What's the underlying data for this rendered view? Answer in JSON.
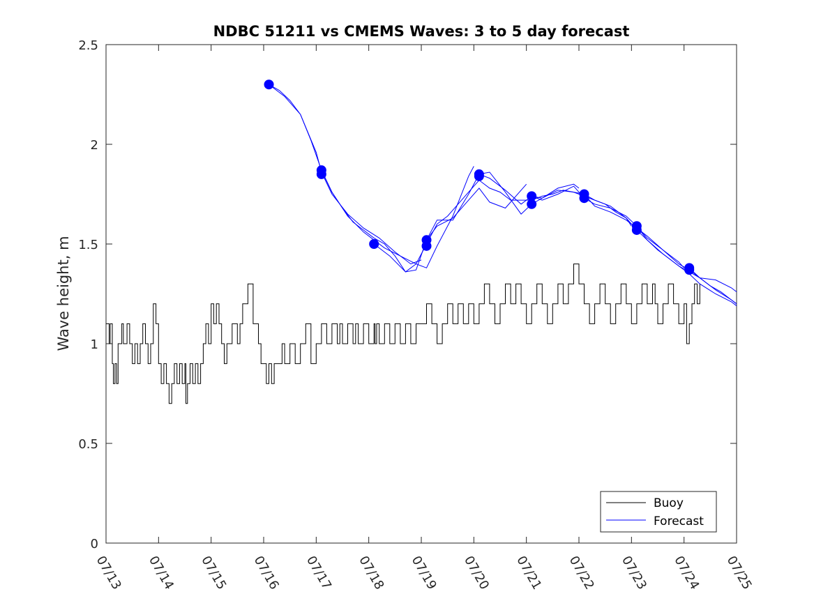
{
  "chart_data": {
    "type": "line",
    "title": "NDBC 51211 vs CMEMS Waves: 3 to 5 day forecast",
    "ylabel": "Wave height, m",
    "xlabel": "",
    "xlim": [
      0,
      12
    ],
    "ylim": [
      0,
      2.5
    ],
    "x_tick_values": [
      0,
      1,
      2,
      3,
      4,
      5,
      6,
      7,
      8,
      9,
      10,
      11,
      12
    ],
    "x_tick_labels": [
      "07/13",
      "07/14",
      "07/15",
      "07/16",
      "07/17",
      "07/18",
      "07/19",
      "07/20",
      "07/21",
      "07/22",
      "07/23",
      "07/24",
      "07/25"
    ],
    "y_tick_values": [
      0,
      0.5,
      1,
      1.5,
      2,
      2.5
    ],
    "y_tick_labels": [
      "0",
      "0.5",
      "1",
      "1.5",
      "2",
      "2.5"
    ],
    "x_unit": "days since 07/13",
    "grid": false,
    "legend_position": "bottom-right",
    "colors": {
      "buoy": "#000000",
      "forecast": "#0000ff"
    },
    "series": [
      {
        "name": "Buoy",
        "color": "#000000",
        "x": [
          0.0,
          0.06,
          0.08,
          0.12,
          0.14,
          0.17,
          0.2,
          0.23,
          0.3,
          0.33,
          0.4,
          0.45,
          0.5,
          0.55,
          0.6,
          0.65,
          0.7,
          0.75,
          0.8,
          0.85,
          0.9,
          0.95,
          1.0,
          1.05,
          1.1,
          1.15,
          1.2,
          1.25,
          1.3,
          1.35,
          1.4,
          1.45,
          1.5,
          1.52,
          1.55,
          1.6,
          1.65,
          1.7,
          1.75,
          1.8,
          1.85,
          1.9,
          1.95,
          2.0,
          2.05,
          2.1,
          2.15,
          2.2,
          2.25,
          2.3,
          2.4,
          2.5,
          2.55,
          2.6,
          2.7,
          2.8,
          2.9,
          2.95,
          3.0,
          3.05,
          3.1,
          3.15,
          3.2,
          3.3,
          3.35,
          3.4,
          3.5,
          3.6,
          3.7,
          3.8,
          3.9,
          4.0,
          4.1,
          4.2,
          4.3,
          4.4,
          4.45,
          4.5,
          4.6,
          4.7,
          4.75,
          4.8,
          4.9,
          5.0,
          5.1,
          5.12,
          5.15,
          5.2,
          5.3,
          5.4,
          5.5,
          5.6,
          5.7,
          5.8,
          5.9,
          6.0,
          6.1,
          6.2,
          6.3,
          6.4,
          6.5,
          6.6,
          6.7,
          6.8,
          6.9,
          7.0,
          7.1,
          7.2,
          7.3,
          7.4,
          7.5,
          7.6,
          7.7,
          7.8,
          7.9,
          8.0,
          8.1,
          8.2,
          8.3,
          8.4,
          8.5,
          8.6,
          8.7,
          8.8,
          8.9,
          9.0,
          9.1,
          9.2,
          9.3,
          9.4,
          9.5,
          9.6,
          9.7,
          9.8,
          9.9,
          10.0,
          10.1,
          10.2,
          10.3,
          10.4,
          10.45,
          10.5,
          10.6,
          10.7,
          10.8,
          10.9,
          11.0,
          11.05,
          11.1,
          11.15,
          11.2,
          11.25,
          11.3
        ],
        "y": [
          1.1,
          1.0,
          1.1,
          0.9,
          0.8,
          0.9,
          0.8,
          1.0,
          1.1,
          1.0,
          1.1,
          1.0,
          0.9,
          1.0,
          0.9,
          1.0,
          1.1,
          1.0,
          0.9,
          1.0,
          1.2,
          1.1,
          0.9,
          0.8,
          0.9,
          0.8,
          0.7,
          0.8,
          0.9,
          0.8,
          0.9,
          0.8,
          0.9,
          0.7,
          0.8,
          0.9,
          0.8,
          0.9,
          0.8,
          0.9,
          1.0,
          1.1,
          1.0,
          1.2,
          1.1,
          1.2,
          1.1,
          1.0,
          0.9,
          1.0,
          1.1,
          1.0,
          1.1,
          1.2,
          1.3,
          1.1,
          1.0,
          0.9,
          0.9,
          0.8,
          0.9,
          0.8,
          0.9,
          0.9,
          1.0,
          0.9,
          1.0,
          0.9,
          1.0,
          1.1,
          0.9,
          1.0,
          1.1,
          1.0,
          1.1,
          1.0,
          1.1,
          1.0,
          1.1,
          1.0,
          1.1,
          1.0,
          1.1,
          1.0,
          1.1,
          1.0,
          1.1,
          1.0,
          1.1,
          1.0,
          1.1,
          1.0,
          1.1,
          1.0,
          1.1,
          1.1,
          1.2,
          1.1,
          1.0,
          1.1,
          1.2,
          1.1,
          1.2,
          1.1,
          1.2,
          1.1,
          1.2,
          1.3,
          1.2,
          1.1,
          1.2,
          1.3,
          1.2,
          1.3,
          1.2,
          1.1,
          1.2,
          1.3,
          1.2,
          1.1,
          1.2,
          1.3,
          1.2,
          1.3,
          1.4,
          1.3,
          1.2,
          1.1,
          1.2,
          1.3,
          1.2,
          1.1,
          1.2,
          1.3,
          1.2,
          1.1,
          1.2,
          1.3,
          1.2,
          1.3,
          1.2,
          1.1,
          1.2,
          1.3,
          1.2,
          1.1,
          1.2,
          1.0,
          1.1,
          1.2,
          1.3,
          1.2,
          1.3
        ]
      },
      {
        "name": "Forecast",
        "color": "#0000ff",
        "x": [
          3.1,
          3.3,
          3.5,
          3.7,
          3.9,
          4.1,
          4.3,
          4.5,
          4.7,
          4.9,
          5.1,
          5.3,
          5.5,
          5.7,
          5.9,
          6.1,
          6.3,
          6.5,
          6.7,
          6.9,
          7.1,
          7.3,
          7.5,
          7.7,
          7.9,
          8.1,
          8.3,
          8.5,
          8.7,
          8.9,
          9.1,
          9.3,
          9.5,
          9.7,
          9.9,
          10.1,
          10.3,
          10.5,
          10.7,
          10.9,
          11.1,
          11.3,
          11.5,
          11.7,
          11.9,
          12.0
        ],
        "y": [
          2.3,
          2.27,
          2.22,
          2.15,
          2.02,
          1.87,
          1.76,
          1.68,
          1.61,
          1.57,
          1.53,
          1.5,
          1.44,
          1.36,
          1.4,
          1.5,
          1.6,
          1.64,
          1.7,
          1.76,
          1.82,
          1.78,
          1.76,
          1.72,
          1.72,
          1.72,
          1.74,
          1.75,
          1.77,
          1.76,
          1.74,
          1.72,
          1.7,
          1.66,
          1.63,
          1.57,
          1.52,
          1.47,
          1.43,
          1.39,
          1.36,
          1.33,
          1.29,
          1.26,
          1.22,
          1.2
        ]
      }
    ],
    "forecast_runs": [
      {
        "x": [
          3.1,
          3.4,
          3.7,
          4.0,
          4.1,
          4.3,
          4.6,
          4.9,
          5.2,
          5.5,
          5.8,
          6.0
        ],
        "y": [
          2.3,
          2.24,
          2.15,
          1.96,
          1.86,
          1.75,
          1.65,
          1.58,
          1.53,
          1.46,
          1.4,
          1.42
        ]
      },
      {
        "x": [
          4.1,
          4.3,
          4.6,
          4.9,
          5.1,
          5.3,
          5.6,
          5.9,
          6.1,
          6.3,
          6.6,
          6.9,
          7.0
        ],
        "y": [
          1.87,
          1.76,
          1.64,
          1.56,
          1.52,
          1.48,
          1.44,
          1.4,
          1.38,
          1.49,
          1.64,
          1.84,
          1.89
        ]
      },
      {
        "x": [
          5.1,
          5.4,
          5.7,
          5.9,
          6.1,
          6.3,
          6.6,
          6.9,
          7.1,
          7.3,
          7.6,
          7.9,
          8.0
        ],
        "y": [
          1.5,
          1.44,
          1.36,
          1.37,
          1.52,
          1.59,
          1.63,
          1.72,
          1.78,
          1.71,
          1.68,
          1.77,
          1.8
        ]
      },
      {
        "x": [
          6.1,
          6.3,
          6.6,
          6.9,
          7.1,
          7.3,
          7.6,
          7.9,
          8.1,
          8.3,
          8.6,
          8.9,
          9.0
        ],
        "y": [
          1.52,
          1.62,
          1.62,
          1.75,
          1.85,
          1.83,
          1.77,
          1.7,
          1.74,
          1.73,
          1.78,
          1.8,
          1.78
        ]
      },
      {
        "x": [
          7.1,
          7.3,
          7.6,
          7.9,
          8.1,
          8.3,
          8.6,
          8.9,
          9.1,
          9.3,
          9.6,
          9.9,
          10.0
        ],
        "y": [
          1.85,
          1.86,
          1.76,
          1.65,
          1.7,
          1.73,
          1.77,
          1.76,
          1.75,
          1.72,
          1.69,
          1.63,
          1.59
        ]
      },
      {
        "x": [
          8.1,
          8.3,
          8.6,
          8.9,
          9.1,
          9.3,
          9.6,
          9.9,
          10.1,
          10.3,
          10.6,
          10.9,
          11.0
        ],
        "y": [
          1.74,
          1.72,
          1.75,
          1.79,
          1.73,
          1.7,
          1.68,
          1.64,
          1.59,
          1.53,
          1.47,
          1.41,
          1.38
        ]
      },
      {
        "x": [
          9.1,
          9.3,
          9.6,
          9.9,
          10.1,
          10.3,
          10.6,
          10.9,
          11.1,
          11.3,
          11.6,
          11.9,
          12.0
        ],
        "y": [
          1.75,
          1.69,
          1.66,
          1.62,
          1.58,
          1.54,
          1.47,
          1.4,
          1.37,
          1.33,
          1.32,
          1.28,
          1.26
        ]
      },
      {
        "x": [
          10.1,
          10.3,
          10.6,
          10.9,
          11.1,
          11.3,
          11.6,
          11.9,
          12.0
        ],
        "y": [
          1.59,
          1.52,
          1.45,
          1.39,
          1.35,
          1.3,
          1.25,
          1.21,
          1.19
        ]
      },
      {
        "x": [
          11.1,
          11.3,
          11.6,
          11.9,
          12.0
        ],
        "y": [
          1.38,
          1.33,
          1.27,
          1.22,
          1.2
        ]
      }
    ],
    "forecast_markers": {
      "x": [
        3.1,
        4.1,
        4.1,
        5.1,
        6.1,
        6.1,
        7.1,
        7.1,
        8.1,
        8.1,
        9.1,
        9.1,
        10.1,
        10.1,
        11.1,
        11.1
      ],
      "y": [
        2.3,
        1.87,
        1.85,
        1.5,
        1.52,
        1.49,
        1.85,
        1.84,
        1.74,
        1.7,
        1.75,
        1.73,
        1.59,
        1.57,
        1.38,
        1.37
      ]
    }
  }
}
